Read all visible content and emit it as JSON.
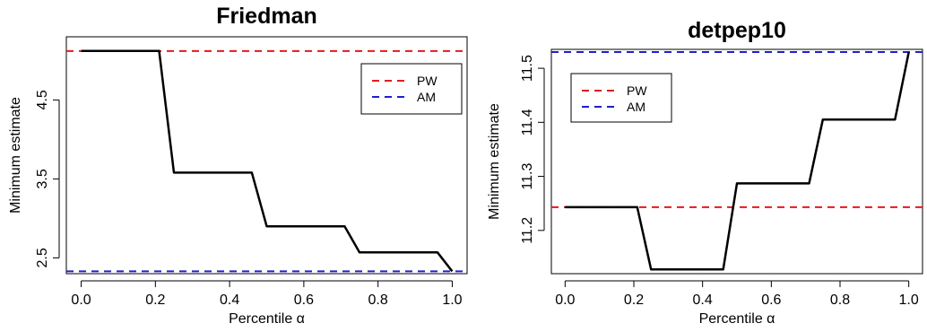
{
  "chart_data": [
    {
      "type": "line",
      "title": "Friedman",
      "xlabel": "Percentile α",
      "ylabel": "Minimum estimate",
      "xlim": [
        -0.04,
        1.04
      ],
      "ylim": [
        2.3,
        5.3
      ],
      "xticks": [
        0.0,
        0.2,
        0.4,
        0.6,
        0.8,
        1.0
      ],
      "xtick_labels": [
        "0.0",
        "0.2",
        "0.4",
        "0.6",
        "0.8",
        "1.0"
      ],
      "yticks": [
        2.5,
        3.5,
        4.5
      ],
      "ytick_labels": [
        "2.5",
        "3.5",
        "4.5"
      ],
      "legend": {
        "placement": "top-right",
        "items": [
          "PW",
          "AM"
        ]
      },
      "hlines": [
        {
          "name": "PW",
          "y": 5.12,
          "color": "#e31a1c",
          "dash": true
        },
        {
          "name": "AM",
          "y": 2.33,
          "color": "#1f1fcc",
          "dash": true
        }
      ],
      "series": [
        {
          "color": "#000000",
          "x": [
            0.0,
            0.21,
            0.25,
            0.46,
            0.5,
            0.71,
            0.75,
            0.96,
            1.0
          ],
          "y": [
            5.12,
            5.12,
            3.58,
            3.58,
            2.9,
            2.9,
            2.57,
            2.57,
            2.33
          ]
        }
      ]
    },
    {
      "type": "line",
      "title": "detpep10",
      "xlabel": "Percentile α",
      "ylabel": "Minimum estimate",
      "xlim": [
        -0.04,
        1.04
      ],
      "ylim": [
        11.12,
        11.535
      ],
      "xticks": [
        0.0,
        0.2,
        0.4,
        0.6,
        0.8,
        1.0
      ],
      "xtick_labels": [
        "0.0",
        "0.2",
        "0.4",
        "0.6",
        "0.8",
        "1.0"
      ],
      "yticks": [
        11.2,
        11.3,
        11.4,
        11.5
      ],
      "ytick_labels": [
        "11.2",
        "11.3",
        "11.4",
        "11.5"
      ],
      "legend": {
        "placement": "top-left",
        "items": [
          "PW",
          "AM"
        ]
      },
      "hlines": [
        {
          "name": "PW",
          "y": 11.243,
          "color": "#e31a1c",
          "dash": true
        },
        {
          "name": "AM",
          "y": 11.53,
          "color": "#1f1fcc",
          "dash": true
        }
      ],
      "series": [
        {
          "color": "#000000",
          "x": [
            0.0,
            0.21,
            0.25,
            0.46,
            0.5,
            0.71,
            0.75,
            0.96,
            1.0
          ],
          "y": [
            11.243,
            11.243,
            11.128,
            11.128,
            11.287,
            11.287,
            11.405,
            11.405,
            11.53
          ]
        }
      ]
    }
  ]
}
